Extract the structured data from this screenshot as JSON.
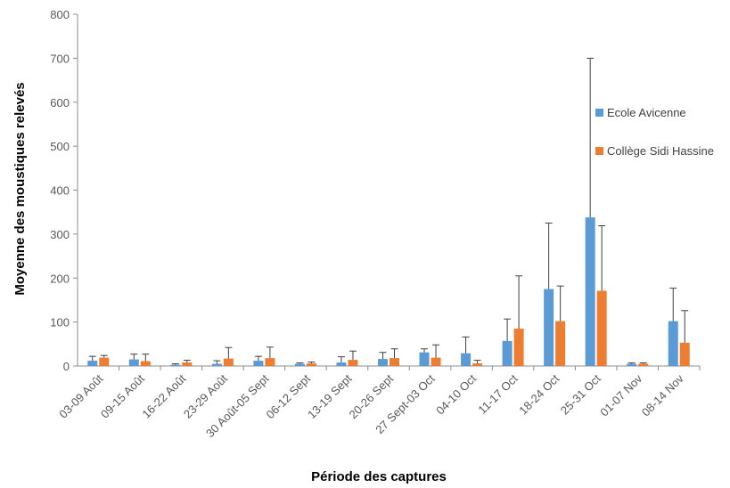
{
  "chart_data": {
    "type": "bar",
    "title": "",
    "xlabel": "Période des captures",
    "ylabel": "Moyenne des moustiques relevés",
    "ylim": [
      0,
      800
    ],
    "yticks": [
      0,
      100,
      200,
      300,
      400,
      500,
      600,
      700,
      800
    ],
    "grid": false,
    "legend_position": "right",
    "categories": [
      "03-09 Août",
      "09-15 Août",
      "16-22 Août",
      "23-29 Août",
      "30 Août-05 Sept",
      "06-12 Sept",
      "13-19 Sept",
      "20-26 Sept",
      "27 Sept-03 Oct",
      "04-10 Oct",
      "11-17 Oct",
      "18-24 Oct",
      "25-31 Oct",
      "01-07 Nov",
      "08-14 Nov"
    ],
    "series": [
      {
        "name": "Ecole Avicenne",
        "color": "#5B9BD5",
        "values": [
          12,
          15,
          3,
          5,
          12,
          5,
          8,
          16,
          31,
          29,
          57,
          175,
          338,
          5,
          102
        ],
        "error": [
          10,
          12,
          2,
          7,
          10,
          2,
          13,
          15,
          8,
          37,
          50,
          150,
          362,
          2,
          75
        ]
      },
      {
        "name": "Collège Sidi Hassine",
        "color": "#ED7D31",
        "values": [
          19,
          11,
          8,
          17,
          18,
          6,
          14,
          18,
          19,
          6,
          85,
          102,
          171,
          5,
          53
        ],
        "error": [
          5,
          16,
          5,
          25,
          25,
          3,
          20,
          21,
          29,
          7,
          120,
          80,
          148,
          2,
          73
        ]
      }
    ]
  }
}
